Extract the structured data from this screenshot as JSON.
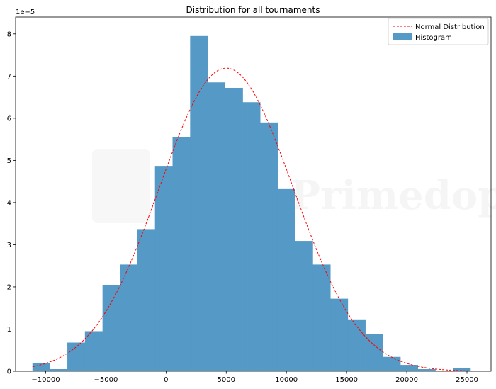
{
  "chart_data": {
    "type": "bar",
    "title": "Distribution for all tournaments",
    "xlabel": "",
    "ylabel": "",
    "y_scale_label": "1e−5",
    "xlim": [
      -12500,
      27000
    ],
    "ylim": [
      0,
      8.4
    ],
    "x_ticks": [
      -10000,
      -5000,
      0,
      5000,
      10000,
      15000,
      20000,
      25000
    ],
    "x_tick_labels": [
      "−10000",
      "−5000",
      "0",
      "5000",
      "10000",
      "15000",
      "20000",
      "25000"
    ],
    "y_ticks": [
      0,
      1,
      2,
      3,
      4,
      5,
      6,
      7,
      8
    ],
    "y_tick_labels": [
      "0",
      "1",
      "2",
      "3",
      "4",
      "5",
      "6",
      "7",
      "8"
    ],
    "bin_edges": [
      -11100,
      -9650,
      -8200,
      -6740,
      -5280,
      -3830,
      -2380,
      -920,
      540,
      2000,
      3460,
      4910,
      6370,
      7820,
      9280,
      10730,
      12190,
      13650,
      15100,
      16560,
      18010,
      19470,
      20920,
      22380,
      23840,
      25290
    ],
    "values": [
      0.2,
      0.05,
      0.68,
      0.95,
      2.05,
      2.53,
      3.37,
      4.87,
      5.55,
      7.95,
      6.85,
      6.72,
      6.38,
      5.9,
      4.32,
      3.09,
      2.53,
      1.72,
      1.23,
      0.89,
      0.34,
      0.15,
      0.05,
      0.0,
      0.07
    ],
    "series": [
      {
        "name": "Histogram",
        "kind": "histogram",
        "color": "#5599c6"
      },
      {
        "name": "Normal Distribution",
        "kind": "line",
        "style": "dashed",
        "color": "#ff0000",
        "mean": 5000,
        "std": 5550
      }
    ],
    "legend_position": "top-right",
    "grid": false
  },
  "watermark": {
    "text": "Primedope"
  }
}
